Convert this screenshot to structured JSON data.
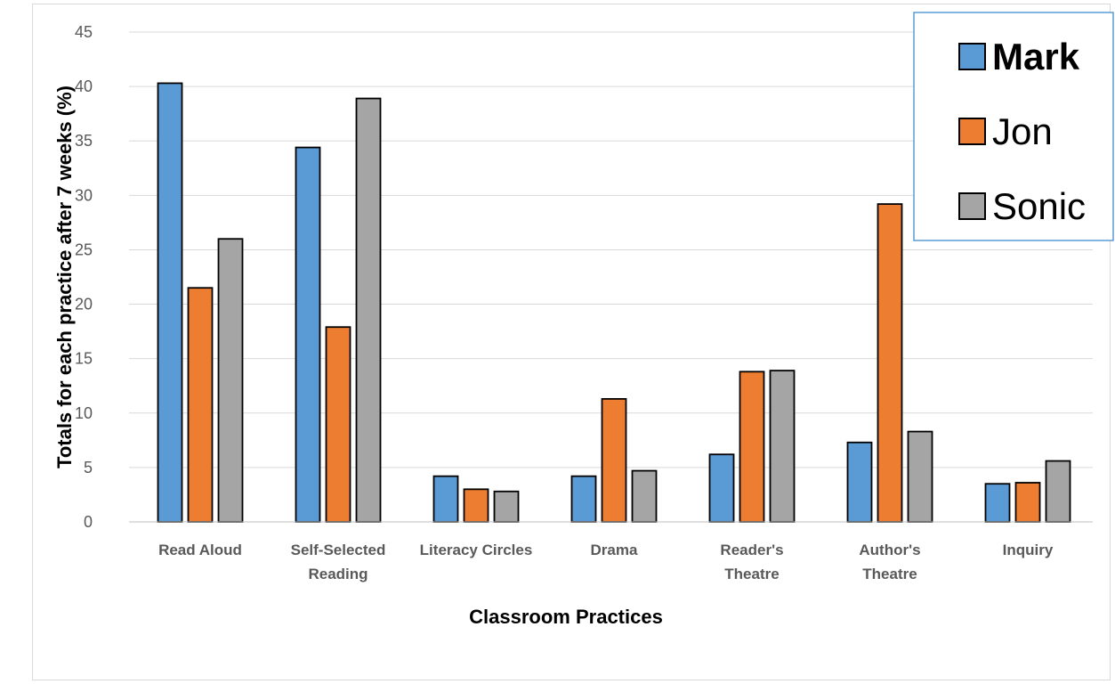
{
  "chart_data": {
    "type": "bar",
    "title": "",
    "xlabel": "Classroom Practices",
    "ylabel": "Totals for each practice after 7 weeks (%)",
    "ylim": [
      0,
      45
    ],
    "yticks": [
      0,
      5,
      10,
      15,
      20,
      25,
      30,
      35,
      40,
      45
    ],
    "grid": true,
    "legend_position": "top-right",
    "categories": [
      [
        "Read Aloud"
      ],
      [
        "Self-Selected",
        "Reading"
      ],
      [
        "Literacy Circles"
      ],
      [
        "Drama"
      ],
      [
        "Reader's",
        "Theatre"
      ],
      [
        "Author's",
        "Theatre"
      ],
      [
        "Inquiry"
      ]
    ],
    "series": [
      {
        "name": "Mark",
        "color": "#5b9bd5",
        "values": [
          40.3,
          34.4,
          4.2,
          4.2,
          6.2,
          7.3,
          3.5
        ]
      },
      {
        "name": "Jon",
        "color": "#ed7d31",
        "values": [
          21.5,
          17.9,
          3.0,
          11.3,
          13.8,
          29.2,
          3.6
        ]
      },
      {
        "name": "Sonic",
        "color": "#a5a5a5",
        "values": [
          26.0,
          38.9,
          2.8,
          4.7,
          13.9,
          8.3,
          5.6
        ]
      }
    ]
  }
}
